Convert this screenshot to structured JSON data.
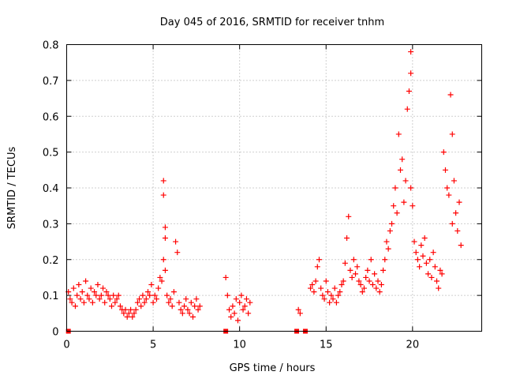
{
  "chart_data": {
    "type": "scatter",
    "title": "Day 045 of 2016, SRMTID for receiver tnhm",
    "xlabel": "GPS time / hours",
    "ylabel": "SRMTID / TECUs",
    "xlim": [
      0,
      24
    ],
    "ylim": [
      0,
      0.8
    ],
    "xticks": [
      0,
      5,
      10,
      15,
      20
    ],
    "yticks": [
      0,
      0.1,
      0.2,
      0.3,
      0.4,
      0.5,
      0.6,
      0.7,
      0.8
    ],
    "xtick_labels": [
      "0",
      "5",
      "10",
      "15",
      "20"
    ],
    "ytick_labels": [
      "0",
      "0.1",
      "0.2",
      "0.3",
      "0.4",
      "0.5",
      "0.6",
      "0.7",
      "0.8"
    ],
    "grid": true,
    "marker": "plus",
    "color": "#ff0000",
    "zero_markers": {
      "marker": "square",
      "x": [
        0.1,
        9.2,
        13.3,
        13.8
      ]
    },
    "series": [
      {
        "name": "SRMTID",
        "x": [
          0.1,
          0.2,
          0.3,
          0.4,
          0.5,
          0.6,
          0.7,
          0.8,
          0.9,
          1.0,
          1.1,
          1.2,
          1.3,
          1.4,
          1.5,
          1.6,
          1.7,
          1.8,
          1.9,
          2.0,
          2.1,
          2.2,
          2.3,
          2.4,
          2.5,
          2.6,
          2.7,
          2.8,
          2.9,
          3.0,
          3.1,
          3.2,
          3.3,
          3.4,
          3.5,
          3.6,
          3.7,
          3.8,
          3.9,
          4.0,
          4.1,
          4.2,
          4.3,
          4.4,
          4.5,
          4.6,
          4.7,
          4.8,
          4.9,
          5.0,
          5.1,
          5.2,
          5.3,
          5.4,
          5.5,
          5.6,
          5.6,
          5.6,
          5.7,
          5.7,
          5.7,
          5.8,
          5.9,
          6.0,
          6.1,
          6.2,
          6.3,
          6.4,
          6.5,
          6.6,
          6.7,
          6.8,
          6.9,
          7.0,
          7.1,
          7.2,
          7.3,
          7.4,
          7.5,
          7.6,
          7.7,
          9.2,
          9.3,
          9.4,
          9.5,
          9.6,
          9.7,
          9.8,
          9.9,
          10.0,
          10.1,
          10.2,
          10.3,
          10.4,
          10.5,
          10.6,
          13.4,
          13.5,
          14.1,
          14.2,
          14.3,
          14.4,
          14.5,
          14.6,
          14.7,
          14.8,
          14.9,
          15.0,
          15.1,
          15.2,
          15.3,
          15.4,
          15.5,
          15.6,
          15.7,
          15.8,
          15.9,
          16.0,
          16.1,
          16.2,
          16.3,
          16.4,
          16.5,
          16.6,
          16.7,
          16.8,
          16.9,
          17.0,
          17.1,
          17.2,
          17.3,
          17.4,
          17.5,
          17.6,
          17.7,
          17.8,
          17.9,
          18.0,
          18.1,
          18.2,
          18.3,
          18.4,
          18.5,
          18.6,
          18.7,
          18.8,
          18.9,
          19.0,
          19.1,
          19.2,
          19.3,
          19.4,
          19.5,
          19.6,
          19.7,
          19.8,
          19.9,
          19.9,
          19.9,
          20.0,
          20.1,
          20.2,
          20.3,
          20.4,
          20.5,
          20.6,
          20.7,
          20.8,
          20.9,
          21.0,
          21.1,
          21.2,
          21.3,
          21.4,
          21.5,
          21.6,
          21.7,
          21.8,
          21.9,
          22.0,
          22.1,
          22.2,
          22.3,
          22.3,
          22.4,
          22.5,
          22.6,
          22.7,
          22.8
        ],
        "y": [
          0.11,
          0.09,
          0.08,
          0.12,
          0.07,
          0.1,
          0.13,
          0.09,
          0.11,
          0.08,
          0.14,
          0.1,
          0.09,
          0.12,
          0.08,
          0.11,
          0.1,
          0.13,
          0.09,
          0.1,
          0.12,
          0.08,
          0.11,
          0.1,
          0.09,
          0.07,
          0.1,
          0.08,
          0.09,
          0.1,
          0.07,
          0.06,
          0.05,
          0.06,
          0.04,
          0.05,
          0.06,
          0.04,
          0.05,
          0.06,
          0.08,
          0.09,
          0.07,
          0.1,
          0.08,
          0.09,
          0.11,
          0.1,
          0.13,
          0.08,
          0.1,
          0.09,
          0.12,
          0.15,
          0.14,
          0.2,
          0.42,
          0.38,
          0.29,
          0.26,
          0.17,
          0.1,
          0.08,
          0.09,
          0.07,
          0.11,
          0.25,
          0.22,
          0.08,
          0.06,
          0.05,
          0.07,
          0.09,
          0.06,
          0.05,
          0.08,
          0.04,
          0.07,
          0.09,
          0.06,
          0.07,
          0.15,
          0.1,
          0.06,
          0.04,
          0.07,
          0.05,
          0.09,
          0.03,
          0.08,
          0.1,
          0.06,
          0.07,
          0.09,
          0.05,
          0.08,
          0.06,
          0.05,
          0.12,
          0.13,
          0.11,
          0.14,
          0.18,
          0.2,
          0.12,
          0.1,
          0.09,
          0.14,
          0.11,
          0.08,
          0.1,
          0.09,
          0.12,
          0.08,
          0.1,
          0.11,
          0.13,
          0.14,
          0.19,
          0.26,
          0.32,
          0.17,
          0.15,
          0.2,
          0.16,
          0.18,
          0.14,
          0.13,
          0.11,
          0.12,
          0.15,
          0.17,
          0.14,
          0.2,
          0.13,
          0.16,
          0.12,
          0.14,
          0.11,
          0.13,
          0.17,
          0.2,
          0.25,
          0.23,
          0.28,
          0.3,
          0.35,
          0.4,
          0.33,
          0.55,
          0.45,
          0.48,
          0.36,
          0.42,
          0.62,
          0.67,
          0.78,
          0.72,
          0.4,
          0.35,
          0.25,
          0.22,
          0.2,
          0.18,
          0.24,
          0.21,
          0.26,
          0.19,
          0.16,
          0.2,
          0.15,
          0.22,
          0.18,
          0.14,
          0.12,
          0.17,
          0.16,
          0.5,
          0.45,
          0.4,
          0.38,
          0.66,
          0.55,
          0.3,
          0.42,
          0.33,
          0.28,
          0.36,
          0.24
        ]
      }
    ]
  }
}
